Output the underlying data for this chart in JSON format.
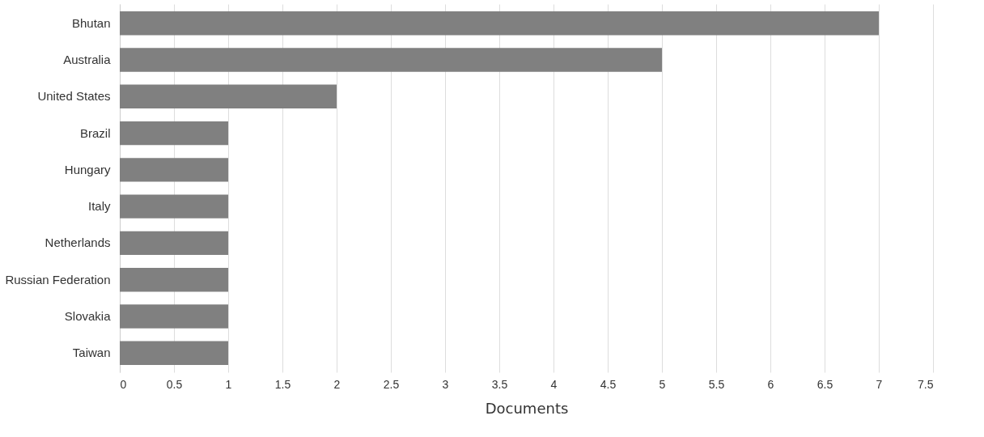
{
  "chart_data": {
    "type": "bar",
    "orientation": "horizontal",
    "categories": [
      "Bhutan",
      "Australia",
      "United States",
      "Brazil",
      "Hungary",
      "Italy",
      "Netherlands",
      "Russian Federation",
      "Slovakia",
      "Taiwan"
    ],
    "values": [
      7,
      5,
      2,
      1,
      1,
      1,
      1,
      1,
      1,
      1
    ],
    "color": "#808080",
    "xlim": [
      0,
      7.5
    ],
    "xticks": [
      0,
      0.5,
      1,
      1.5,
      2,
      2.5,
      3,
      3.5,
      4,
      4.5,
      5,
      5.5,
      6,
      6.5,
      7,
      7.5
    ],
    "xlabel": "Documents",
    "grid": "x"
  }
}
